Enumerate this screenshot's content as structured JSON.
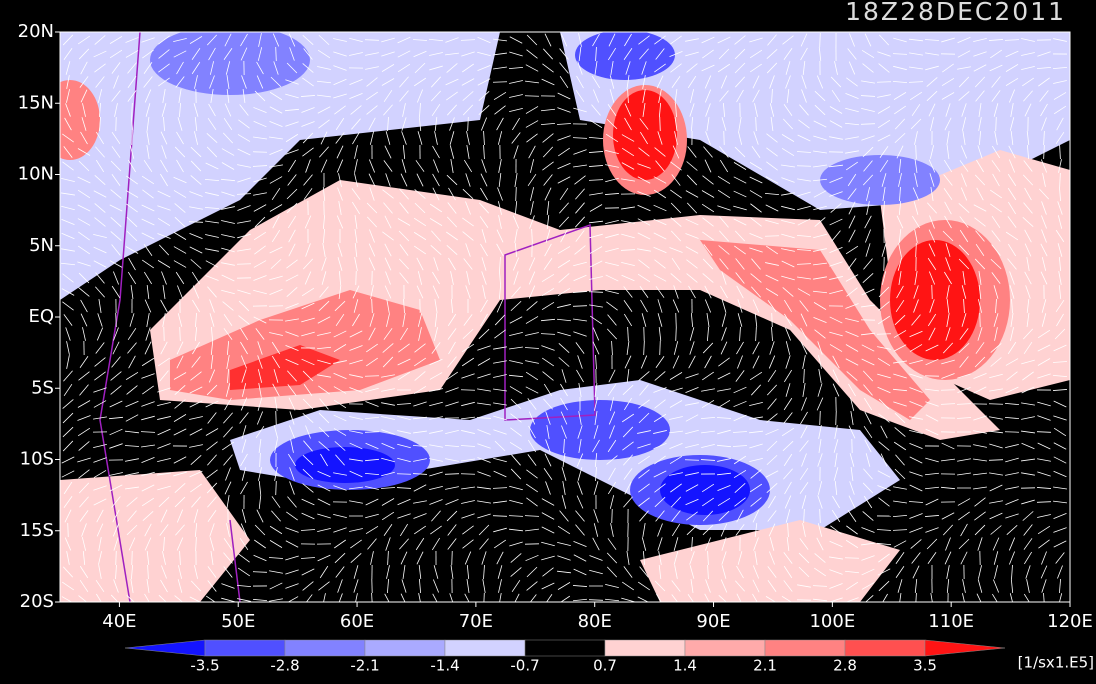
{
  "title": "18Z28DEC2011",
  "map": {
    "lon_range": [
      35,
      120
    ],
    "lat_range": [
      -20,
      20
    ],
    "lon_ticks": [
      {
        "value": 40,
        "label": "40E"
      },
      {
        "value": 50,
        "label": "50E"
      },
      {
        "value": 60,
        "label": "60E"
      },
      {
        "value": 70,
        "label": "70E"
      },
      {
        "value": 80,
        "label": "80E"
      },
      {
        "value": 90,
        "label": "90E"
      },
      {
        "value": 100,
        "label": "100E"
      },
      {
        "value": 110,
        "label": "110E"
      },
      {
        "value": 120,
        "label": "120E"
      }
    ],
    "lat_ticks": [
      {
        "value": 20,
        "label": "20N"
      },
      {
        "value": 15,
        "label": "15N"
      },
      {
        "value": 10,
        "label": "10N"
      },
      {
        "value": 5,
        "label": "5N"
      },
      {
        "value": 0,
        "label": "EQ"
      },
      {
        "value": -5,
        "label": "5S"
      },
      {
        "value": -10,
        "label": "10S"
      },
      {
        "value": -15,
        "label": "15S"
      },
      {
        "value": -20,
        "label": "20S"
      }
    ]
  },
  "colorbar": {
    "levels": [
      -3.5,
      -2.8,
      -2.1,
      -1.4,
      -0.7,
      0.7,
      1.4,
      2.1,
      2.8,
      3.5
    ],
    "colors": [
      "#1414ff",
      "#5050ff",
      "#8282ff",
      "#aaaaff",
      "#d2d2ff",
      "#000000",
      "#ffd2d2",
      "#ffaaaa",
      "#ff8282",
      "#ff5050",
      "#ff1414"
    ],
    "unit": "[1/sx1.E5]"
  }
}
